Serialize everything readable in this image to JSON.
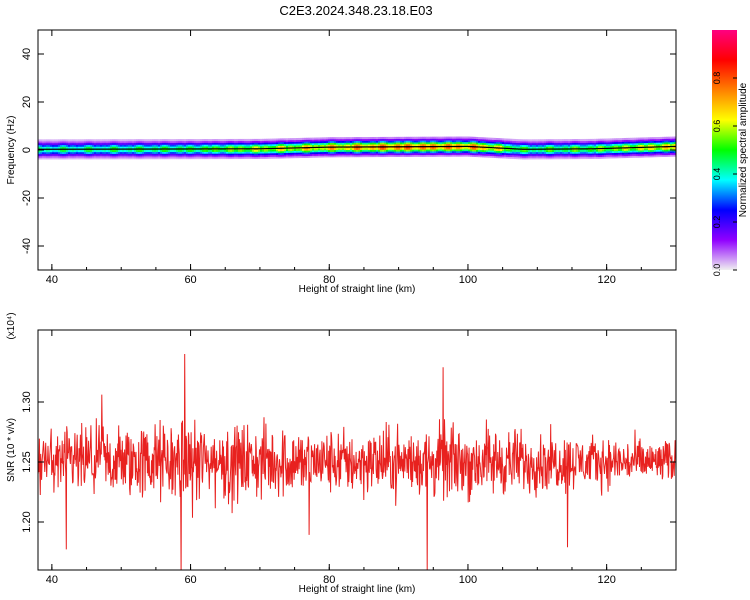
{
  "title": "C2E3.2024.348.23.18.E03",
  "chart_data": [
    {
      "type": "heatmap",
      "xlabel": "Height of straight line (km)",
      "ylabel": "Frequency (Hz)",
      "xlim": [
        38,
        130
      ],
      "ylim": [
        -50,
        50
      ],
      "xticks": [
        40,
        60,
        80,
        100,
        120
      ],
      "yticks": [
        -40,
        -20,
        0,
        20,
        40
      ],
      "colorbar": {
        "label": "Normalized spectral amplitude",
        "range": [
          0,
          1
        ],
        "ticks": [
          "0.0",
          "0.2",
          "0.4",
          "0.6",
          "0.8"
        ],
        "colors": [
          "#f0f0f0",
          "#9000ff",
          "#0000ff",
          "#00ffff",
          "#00ff00",
          "#ffff00",
          "#ff8000",
          "#ff0000",
          "#ff0080"
        ]
      },
      "band": {
        "center_hz": [
          {
            "x": 38,
            "f": 0.3
          },
          {
            "x": 70,
            "f": 0.5
          },
          {
            "x": 80,
            "f": 1.2
          },
          {
            "x": 100,
            "f": 1.5
          },
          {
            "x": 108,
            "f": 0.3
          },
          {
            "x": 118,
            "f": 0.5
          },
          {
            "x": 130,
            "f": 1.5
          }
        ],
        "peak_amplitude": [
          {
            "x": 38,
            "a": 0.45
          },
          {
            "x": 60,
            "a": 0.5
          },
          {
            "x": 68,
            "a": 0.6
          },
          {
            "x": 80,
            "a": 0.7
          },
          {
            "x": 90,
            "a": 0.8
          },
          {
            "x": 102,
            "a": 0.75
          },
          {
            "x": 108,
            "a": 0.5
          },
          {
            "x": 118,
            "a": 0.55
          },
          {
            "x": 130,
            "a": 0.7
          }
        ]
      }
    },
    {
      "type": "line",
      "xlabel": "Height of straight line (km)",
      "ylabel": "SNR (10 * v/v)",
      "multiplier": "(x10⁴)",
      "xlim": [
        38,
        130
      ],
      "ylim": [
        1.16,
        1.36
      ],
      "xticks": [
        40,
        60,
        80,
        100,
        120
      ],
      "yticks": [
        "1.20",
        "1.25",
        "1.30"
      ],
      "color": "#e8211f",
      "series": [
        {
          "baseline": 1.25,
          "noise_envelope": [
            {
              "x": 38,
              "a": 0.03
            },
            {
              "x": 50,
              "a": 0.035
            },
            {
              "x": 60,
              "a": 0.04
            },
            {
              "x": 80,
              "a": 0.03
            },
            {
              "x": 100,
              "a": 0.035
            },
            {
              "x": 115,
              "a": 0.025
            },
            {
              "x": 130,
              "a": 0.02
            }
          ]
        }
      ]
    }
  ]
}
